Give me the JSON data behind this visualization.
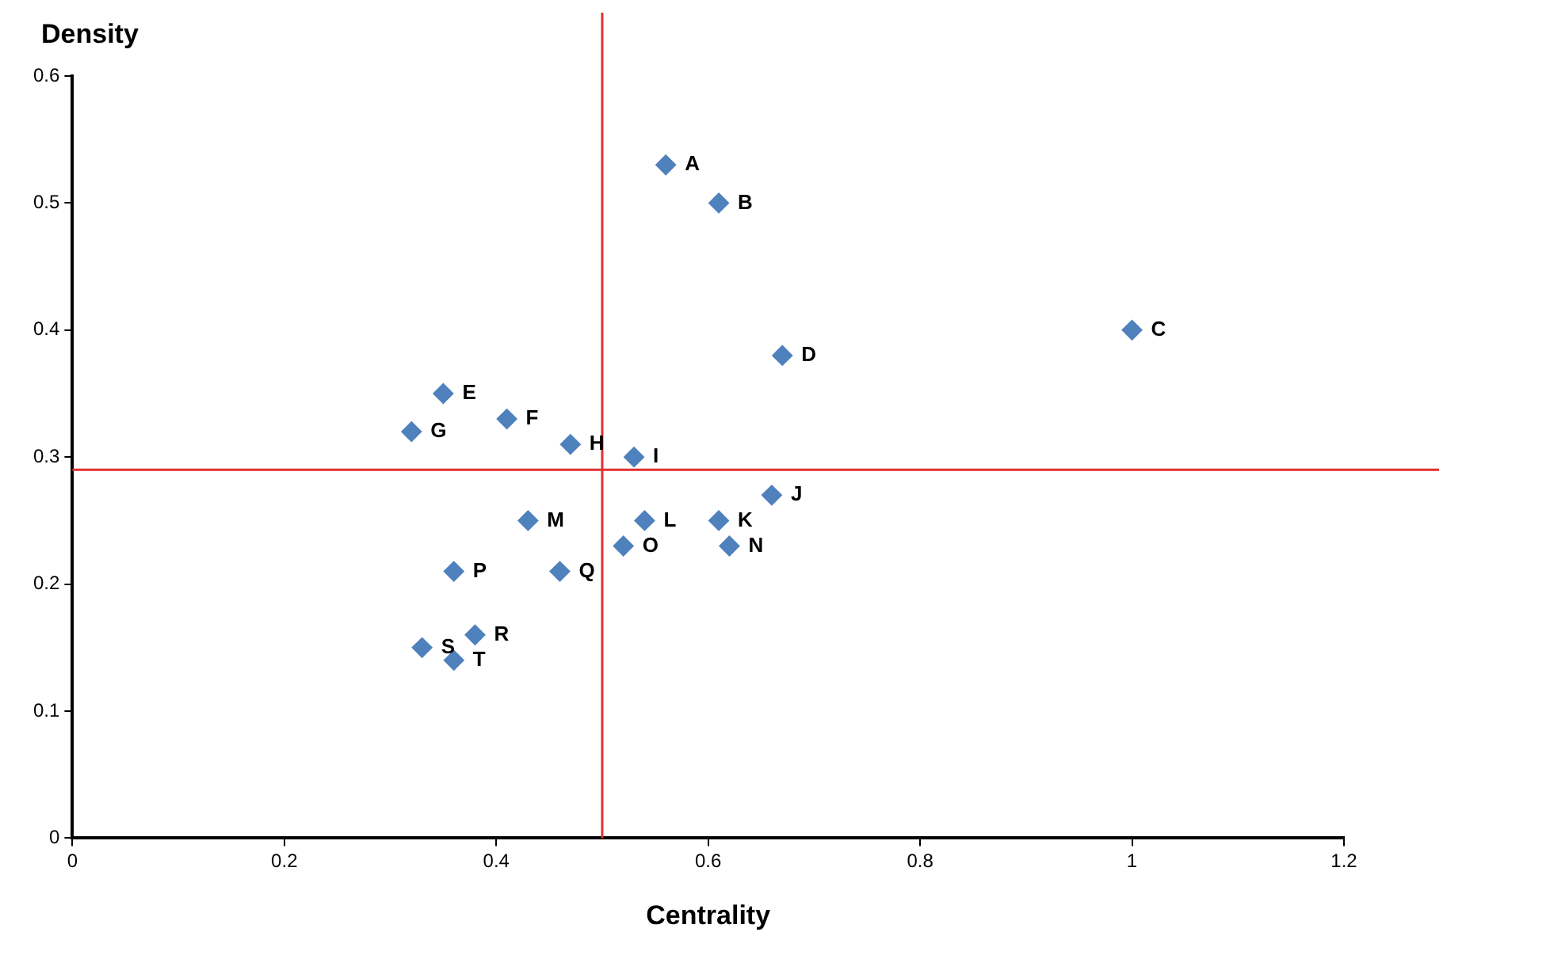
{
  "chart_data": {
    "type": "scatter",
    "xlabel": "Centrality",
    "ylabel": "Density",
    "x": [
      0.56,
      0.61,
      1.0,
      0.67,
      0.35,
      0.41,
      0.32,
      0.47,
      0.53,
      0.66,
      0.61,
      0.54,
      0.43,
      0.62,
      0.52,
      0.36,
      0.46,
      0.38,
      0.33,
      0.36
    ],
    "series": [
      {
        "color": "#4f81bd",
        "values": [
          0.53,
          0.5,
          0.4,
          0.38,
          0.35,
          0.33,
          0.32,
          0.31,
          0.3,
          0.27,
          0.25,
          0.25,
          0.25,
          0.23,
          0.23,
          0.21,
          0.21,
          0.16,
          0.15,
          0.14
        ]
      }
    ],
    "xlim": [
      0,
      1.2
    ],
    "xticks": [
      0,
      0.2,
      0.4,
      0.6,
      0.8,
      1,
      1.2
    ],
    "ylim": [
      0,
      0.6
    ],
    "yticks": [
      0,
      0.1,
      0.2,
      0.3,
      0.4,
      0.5,
      0.6
    ],
    "marker": "diamond",
    "grid": false,
    "legend": false,
    "ref_lines": [
      {
        "axis": "x",
        "value": 0.5,
        "color": "#e03030"
      },
      {
        "axis": "y",
        "value": 0.29,
        "color": "#e03030"
      }
    ],
    "annotations": [
      {
        "text": "A",
        "x": 0.56,
        "y": 0.53
      },
      {
        "text": "B",
        "x": 0.61,
        "y": 0.5
      },
      {
        "text": "C",
        "x": 1.0,
        "y": 0.4
      },
      {
        "text": "D",
        "x": 0.67,
        "y": 0.38
      },
      {
        "text": "E",
        "x": 0.35,
        "y": 0.35
      },
      {
        "text": "F",
        "x": 0.41,
        "y": 0.33
      },
      {
        "text": "G",
        "x": 0.32,
        "y": 0.32
      },
      {
        "text": "H",
        "x": 0.47,
        "y": 0.31
      },
      {
        "text": "I",
        "x": 0.53,
        "y": 0.3
      },
      {
        "text": "J",
        "x": 0.66,
        "y": 0.27
      },
      {
        "text": "K",
        "x": 0.61,
        "y": 0.25
      },
      {
        "text": "L",
        "x": 0.54,
        "y": 0.25
      },
      {
        "text": "M",
        "x": 0.43,
        "y": 0.25
      },
      {
        "text": "N",
        "x": 0.62,
        "y": 0.23
      },
      {
        "text": "O",
        "x": 0.52,
        "y": 0.23
      },
      {
        "text": "P",
        "x": 0.36,
        "y": 0.21
      },
      {
        "text": "Q",
        "x": 0.46,
        "y": 0.21
      },
      {
        "text": "R",
        "x": 0.38,
        "y": 0.16
      },
      {
        "text": "S",
        "x": 0.33,
        "y": 0.15
      },
      {
        "text": "T",
        "x": 0.36,
        "y": 0.14
      }
    ]
  }
}
